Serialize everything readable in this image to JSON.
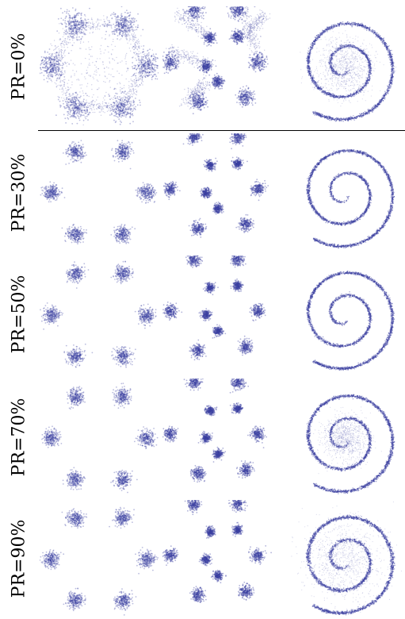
{
  "rows": [
    {
      "label": "PR=0%"
    },
    {
      "label": "PR=30%"
    },
    {
      "label": "PR=50%"
    },
    {
      "label": "PR=70%"
    },
    {
      "label": "PR=90%"
    }
  ],
  "columns": [
    "hexagon-gaussians",
    "scattered-gaussians",
    "spiral"
  ],
  "point_color": "#3a3fa0"
}
